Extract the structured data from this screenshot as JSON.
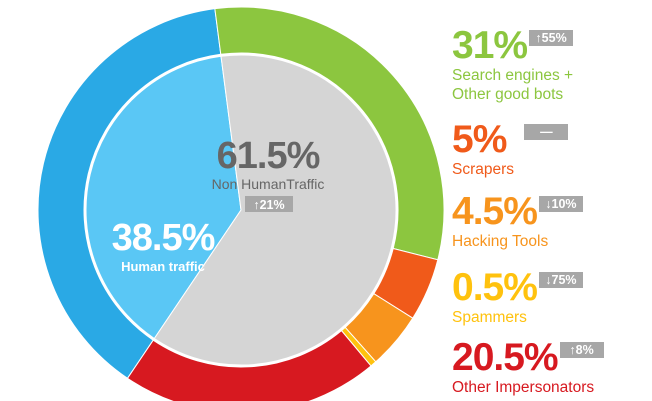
{
  "chart_data": {
    "type": "pie",
    "slices": [
      {
        "name": "Human traffic",
        "value": 38.5,
        "color": "#2aa9e5"
      },
      {
        "name": "Search engines + Other good bots",
        "value": 31,
        "color": "#8cc63f"
      },
      {
        "name": "Scrapers",
        "value": 5,
        "color": "#f05a1a"
      },
      {
        "name": "Hacking Tools",
        "value": 4.5,
        "color": "#f7941d"
      },
      {
        "name": "Spammers",
        "value": 0.5,
        "color": "#ffc20e"
      },
      {
        "name": "Other Impersonators",
        "value": 20.5,
        "color": "#d71920"
      }
    ],
    "inner_slices": [
      {
        "name": "Human traffic",
        "value": 38.5,
        "color": "#5ac7f5"
      },
      {
        "name": "Non HumanTraffic",
        "value": 61.5,
        "color": "#d5d5d5"
      }
    ]
  },
  "center": {
    "non_human_pct": "61.5%",
    "non_human_label": "Non HumanTraffic",
    "non_human_change": "↑21%",
    "human_pct": "38.5%",
    "human_label": "Human traffic"
  },
  "legend": [
    {
      "pct": "31%",
      "change": "↑55%",
      "label_lines": [
        "Search engines +",
        "Other good bots"
      ],
      "color": "#8cc63f"
    },
    {
      "pct": "5%",
      "change": "—",
      "label_lines": [
        "Scrapers"
      ],
      "color": "#f05a1a"
    },
    {
      "pct": "4.5%",
      "change": "↓10%",
      "label_lines": [
        "Hacking Tools"
      ],
      "color": "#f7941d"
    },
    {
      "pct": "0.5%",
      "change": "↓75%",
      "label_lines": [
        "Spammers"
      ],
      "color": "#ffc20e"
    },
    {
      "pct": "20.5%",
      "change": "↑8%",
      "label_lines": [
        "Other Impersonators"
      ],
      "color": "#d71920"
    }
  ]
}
